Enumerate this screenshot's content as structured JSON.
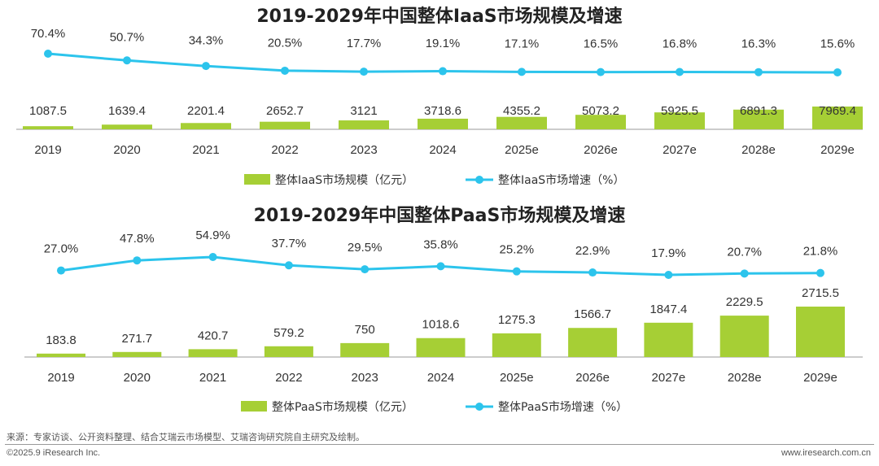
{
  "colors": {
    "bar": "#a6cf35",
    "line": "#2cc4ec",
    "axis": "#999999"
  },
  "chart_data": [
    {
      "type": "bar",
      "title": "2019-2029年中国整体IaaS市场规模及增速",
      "categories": [
        "2019",
        "2020",
        "2021",
        "2022",
        "2023",
        "2024",
        "2025e",
        "2026e",
        "2027e",
        "2028e",
        "2029e"
      ],
      "series": [
        {
          "name": "整体IaaS市场规模（亿元）",
          "type": "bar",
          "values": [
            1087.5,
            1639.4,
            2201.4,
            2652.7,
            3121,
            3718.6,
            4355.2,
            5073.2,
            5925.5,
            6891.3,
            7969.4
          ],
          "labels": [
            "1087.5",
            "1639.4",
            "2201.4",
            "2652.7",
            "3121",
            "3718.6",
            "4355.2",
            "5073.2",
            "5925.5",
            "6891.3",
            "7969.4"
          ]
        },
        {
          "name": "整体IaaS市场增速（%）",
          "type": "line",
          "values": [
            70.4,
            50.7,
            34.3,
            20.5,
            17.7,
            19.1,
            17.1,
            16.5,
            16.8,
            16.3,
            15.6
          ],
          "labels": [
            "70.4%",
            "50.7%",
            "34.3%",
            "20.5%",
            "17.7%",
            "19.1%",
            "17.1%",
            "16.5%",
            "16.8%",
            "16.3%",
            "15.6%"
          ]
        }
      ],
      "legend_position": "bottom"
    },
    {
      "type": "bar",
      "title": "2019-2029年中国整体PaaS市场规模及增速",
      "categories": [
        "2019",
        "2020",
        "2021",
        "2022",
        "2023",
        "2024",
        "2025e",
        "2026e",
        "2027e",
        "2028e",
        "2029e"
      ],
      "series": [
        {
          "name": "整体PaaS市场规模（亿元）",
          "type": "bar",
          "values": [
            183.8,
            271.7,
            420.7,
            579.2,
            750,
            1018.6,
            1275.3,
            1566.7,
            1847.4,
            2229.5,
            2715.5
          ],
          "labels": [
            "183.8",
            "271.7",
            "420.7",
            "579.2",
            "750",
            "1018.6",
            "1275.3",
            "1566.7",
            "1847.4",
            "2229.5",
            "2715.5"
          ]
        },
        {
          "name": "整体PaaS市场增速（%）",
          "type": "line",
          "values": [
            27.0,
            47.8,
            54.9,
            37.7,
            29.5,
            35.8,
            25.2,
            22.9,
            17.9,
            20.7,
            21.8
          ],
          "labels": [
            "27.0%",
            "47.8%",
            "54.9%",
            "37.7%",
            "29.5%",
            "35.8%",
            "25.2%",
            "22.9%",
            "17.9%",
            "20.7%",
            "21.8%"
          ]
        }
      ],
      "legend_position": "bottom"
    }
  ],
  "footer": {
    "source": "来源：专家访谈、公开资料整理、结合艾瑞云市场模型、艾瑞咨询研究院自主研究及绘制。",
    "copyright": "©2025.9 iResearch Inc.",
    "website": "www.iresearch.com.cn"
  }
}
